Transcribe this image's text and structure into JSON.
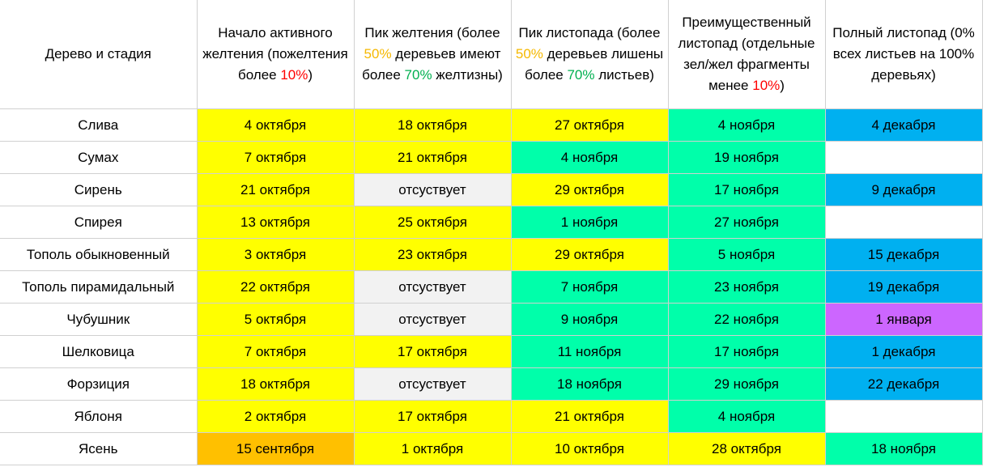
{
  "header": {
    "col0": "Дерево и стадия",
    "col1": {
      "before": "Начало активного желтения (пожелтения более ",
      "pct": "10%",
      "after": ")"
    },
    "col2": {
      "t1": "Пик желтения (более ",
      "p1": "50%",
      "t2": " деревьев имеют более ",
      "p2": "70%",
      "t3": " желтизны)"
    },
    "col3": {
      "t1": "Пик листопада (более ",
      "p1": "50%",
      "t2": " деревьев лишены более ",
      "p2": "70%",
      "t3": " листьев)"
    },
    "col4": {
      "before": "Преимущественный листопад (отдельные зел/жел фрагменты менее ",
      "pct": "10%",
      "after": ")"
    },
    "col5": "Полный листопад (0% всех листьев на 100% деревьях)"
  },
  "colors": {
    "yellow": "#ffff00",
    "green": "#00ffaa",
    "blue": "#00b0f0",
    "purple": "#cc66ff",
    "orange": "#ffc000",
    "gray": "#f2f2f2",
    "white": "#ffffff",
    "accent_orange_text": "#f5b800",
    "accent_green_text": "#00b050",
    "accent_red_text": "#ff0000"
  },
  "rows": [
    {
      "name": "Слива",
      "cells": [
        {
          "v": "4 октября",
          "c": "y"
        },
        {
          "v": "18 октября",
          "c": "y"
        },
        {
          "v": "27 октября",
          "c": "y"
        },
        {
          "v": "4 ноября",
          "c": "g"
        },
        {
          "v": "4 декабря",
          "c": "b"
        }
      ]
    },
    {
      "name": "Сумах",
      "cells": [
        {
          "v": "7 октября",
          "c": "y"
        },
        {
          "v": "21 октября",
          "c": "y"
        },
        {
          "v": "4 ноября",
          "c": "g"
        },
        {
          "v": "19 ноября",
          "c": "g"
        },
        {
          "v": "",
          "c": "w"
        }
      ]
    },
    {
      "name": "Сирень",
      "cells": [
        {
          "v": "21 октября",
          "c": "y"
        },
        {
          "v": "отсуствует",
          "c": "e"
        },
        {
          "v": "29 октября",
          "c": "y"
        },
        {
          "v": "17 ноября",
          "c": "g"
        },
        {
          "v": "9 декабря",
          "c": "b"
        }
      ]
    },
    {
      "name": "Спирея",
      "cells": [
        {
          "v": "13 октября",
          "c": "y"
        },
        {
          "v": "25 октября",
          "c": "y"
        },
        {
          "v": "1 ноября",
          "c": "g"
        },
        {
          "v": "27 ноября",
          "c": "g"
        },
        {
          "v": "",
          "c": "w"
        }
      ]
    },
    {
      "name": "Тополь обыкновенный",
      "cells": [
        {
          "v": "3 октября",
          "c": "y"
        },
        {
          "v": "23 октября",
          "c": "y"
        },
        {
          "v": "29 октября",
          "c": "y"
        },
        {
          "v": "5 ноября",
          "c": "g"
        },
        {
          "v": "15 декабря",
          "c": "b"
        }
      ]
    },
    {
      "name": "Тополь пирамидальный",
      "cells": [
        {
          "v": "22 октября",
          "c": "y"
        },
        {
          "v": "отсуствует",
          "c": "e"
        },
        {
          "v": "7 ноября",
          "c": "g"
        },
        {
          "v": "23 ноября",
          "c": "g"
        },
        {
          "v": "19 декабря",
          "c": "b"
        }
      ]
    },
    {
      "name": "Чубушник",
      "cells": [
        {
          "v": "5 октября",
          "c": "y"
        },
        {
          "v": "отсуствует",
          "c": "e"
        },
        {
          "v": "9 ноября",
          "c": "g"
        },
        {
          "v": "22 ноября",
          "c": "g"
        },
        {
          "v": "1 января",
          "c": "p"
        }
      ]
    },
    {
      "name": "Шелковица",
      "cells": [
        {
          "v": "7 октября",
          "c": "y"
        },
        {
          "v": "17 октября",
          "c": "y"
        },
        {
          "v": "11 ноября",
          "c": "g"
        },
        {
          "v": "17 ноября",
          "c": "g"
        },
        {
          "v": "1 декабря",
          "c": "b"
        }
      ]
    },
    {
      "name": "Форзиция",
      "cells": [
        {
          "v": "18 октября",
          "c": "y"
        },
        {
          "v": "отсуствует",
          "c": "e"
        },
        {
          "v": "18 ноября",
          "c": "g"
        },
        {
          "v": "29 ноября",
          "c": "g"
        },
        {
          "v": "22 декабря",
          "c": "b"
        }
      ]
    },
    {
      "name": "Яблоня",
      "cells": [
        {
          "v": "2 октября",
          "c": "y"
        },
        {
          "v": "17 октября",
          "c": "y"
        },
        {
          "v": "21 октября",
          "c": "y"
        },
        {
          "v": "4 ноября",
          "c": "g"
        },
        {
          "v": "",
          "c": "w"
        }
      ]
    },
    {
      "name": "Ясень",
      "cells": [
        {
          "v": "15 сентября",
          "c": "o"
        },
        {
          "v": "1 октября",
          "c": "y"
        },
        {
          "v": "10 октября",
          "c": "y"
        },
        {
          "v": "28 октября",
          "c": "y"
        },
        {
          "v": "18 ноября",
          "c": "g"
        }
      ]
    }
  ]
}
